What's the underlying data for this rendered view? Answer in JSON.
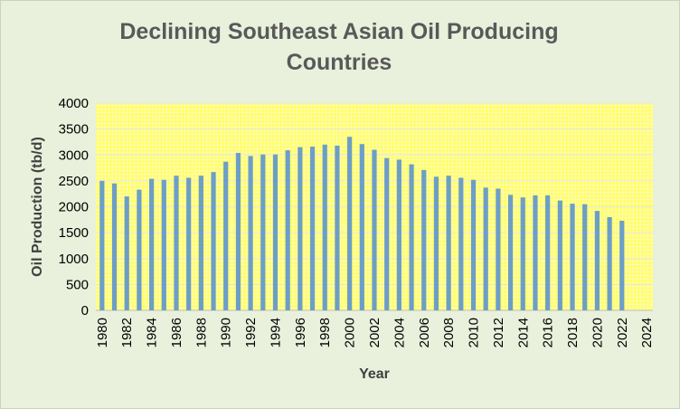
{
  "chart_data": {
    "type": "bar",
    "title": "Declining Southeast Asian Oil Producing Countries",
    "xlabel": "Year",
    "ylabel": "Oil Production (tb/d)",
    "ylim": [
      0,
      4000
    ],
    "yticks": [
      0,
      500,
      1000,
      1500,
      2000,
      2500,
      3000,
      3500,
      4000
    ],
    "x_range": [
      1980,
      2025
    ],
    "xtick_labels": [
      "1980",
      "1982",
      "1984",
      "1986",
      "1988",
      "1990",
      "1992",
      "1994",
      "1996",
      "1998",
      "2000",
      "2002",
      "2004",
      "2006",
      "2008",
      "2010",
      "2012",
      "2014",
      "2016",
      "2018",
      "2020",
      "2022",
      "2024"
    ],
    "categories": [
      1980,
      1981,
      1982,
      1983,
      1984,
      1985,
      1986,
      1987,
      1988,
      1989,
      1990,
      1991,
      1992,
      1993,
      1994,
      1995,
      1996,
      1997,
      1998,
      1999,
      2000,
      2001,
      2002,
      2003,
      2004,
      2005,
      2006,
      2007,
      2008,
      2009,
      2010,
      2011,
      2012,
      2013,
      2014,
      2015,
      2016,
      2017,
      2018,
      2019,
      2020,
      2021,
      2022
    ],
    "values": [
      2500,
      2450,
      2200,
      2330,
      2540,
      2520,
      2600,
      2560,
      2600,
      2670,
      2870,
      3040,
      2980,
      3010,
      3010,
      3090,
      3150,
      3160,
      3200,
      3180,
      3350,
      3210,
      3100,
      2940,
      2910,
      2820,
      2710,
      2580,
      2600,
      2560,
      2520,
      2370,
      2350,
      2230,
      2180,
      2220,
      2220,
      2120,
      2060,
      2050,
      1920,
      1800,
      1730
    ],
    "grid": true,
    "colors": {
      "bar": "#6d9ec6",
      "plot_background": "#ffff66",
      "grid": "#e6e6e6",
      "background": "#e9f1dc"
    }
  }
}
